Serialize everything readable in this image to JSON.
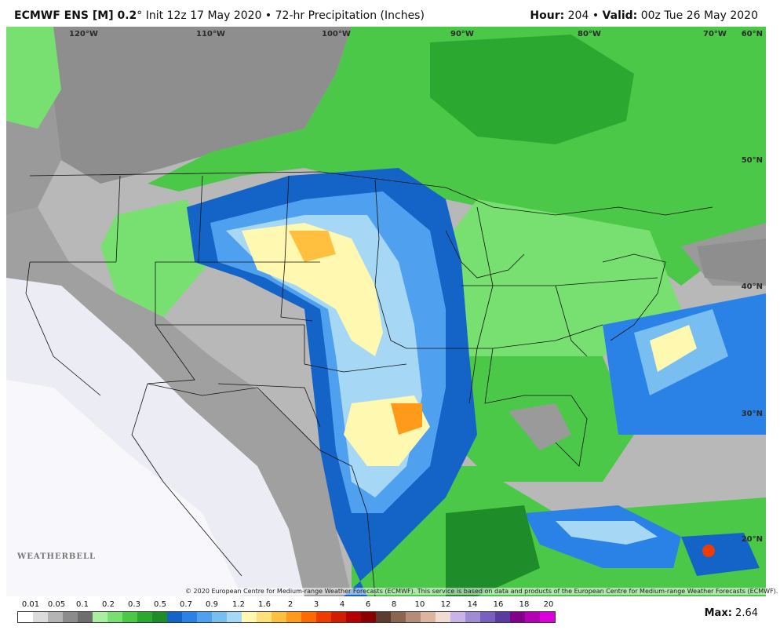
{
  "header": {
    "model": "ECMWF ENS [M] 0.2",
    "degree": "°",
    "info": " Init 12z 17 May 2020 • 72-hr Precipitation (Inches)",
    "hour_label": "Hour:",
    "hour_value": " 204",
    "sep": " • ",
    "valid_label": "Valid:",
    "valid_value": " 00z Tue 26 May 2020"
  },
  "map": {
    "lon_labels": [
      "120°W",
      "110°W",
      "100°W",
      "90°W",
      "80°W",
      "70°W"
    ],
    "lat_labels": [
      "60°N",
      "50°N",
      "40°N",
      "30°N",
      "20°N"
    ],
    "copyright": "© 2020 European Centre for Medium-range Weather Forecasts (ECMWF). This service is based on data and products of the European Centre for Medium-range Weather Forecasts (ECMWF).",
    "logo_text": "WEATHERBELL"
  },
  "legend": {
    "ticks": [
      "0.01",
      "0.05",
      "0.1",
      "0.2",
      "0.3",
      "0.5",
      "0.7",
      "0.9",
      "1.2",
      "1.6",
      "2",
      "3",
      "4",
      "6",
      "8",
      "10",
      "12",
      "14",
      "16",
      "18",
      "20"
    ],
    "colors": [
      "#ffffff",
      "#dcdcdc",
      "#b4b4b4",
      "#8c8c8c",
      "#6e6e6e",
      "#a8f0a0",
      "#78e070",
      "#4cc848",
      "#2aa830",
      "#1e8c28",
      "#1464c8",
      "#2a82e6",
      "#50a0f0",
      "#78bef0",
      "#a6d8f5",
      "#fff8b0",
      "#ffe07a",
      "#ffc040",
      "#ff9a1a",
      "#ff6a00",
      "#f03c00",
      "#d21e00",
      "#b40000",
      "#8c0000",
      "#5a3c32",
      "#8c6450",
      "#b48c78",
      "#dcb4a0",
      "#f0dcd2",
      "#c8b4e6",
      "#a08cd2",
      "#7860be",
      "#5a3ca0",
      "#82008c",
      "#b400b4",
      "#dc00dc"
    ],
    "max_label": "Max:",
    "max_value": " 2.64"
  }
}
